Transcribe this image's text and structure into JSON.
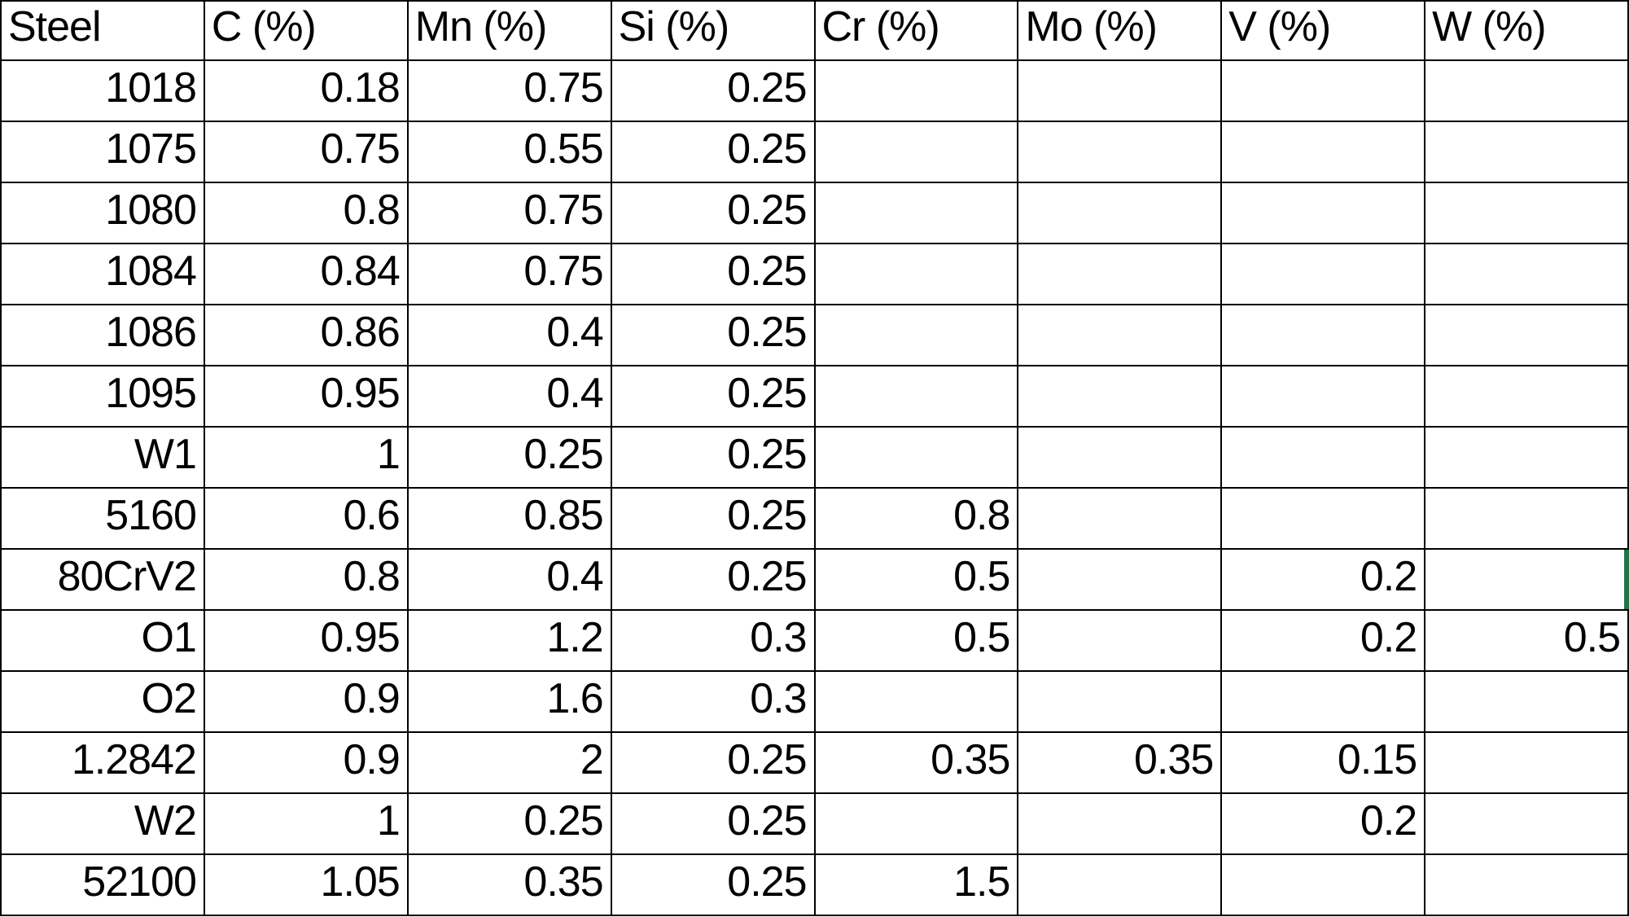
{
  "table": {
    "columns": [
      "Steel",
      "C (%)",
      "Mn (%)",
      "Si (%)",
      "Cr (%)",
      "Mo (%)",
      "V (%)",
      "W (%)"
    ],
    "rows": [
      {
        "cells": [
          "1018",
          "0.18",
          "0.75",
          "0.25",
          "",
          "",
          "",
          ""
        ]
      },
      {
        "cells": [
          "1075",
          "0.75",
          "0.55",
          "0.25",
          "",
          "",
          "",
          ""
        ]
      },
      {
        "cells": [
          "1080",
          "0.8",
          "0.75",
          "0.25",
          "",
          "",
          "",
          ""
        ]
      },
      {
        "cells": [
          "1084",
          "0.84",
          "0.75",
          "0.25",
          "",
          "",
          "",
          ""
        ]
      },
      {
        "cells": [
          "1086",
          "0.86",
          "0.4",
          "0.25",
          "",
          "",
          "",
          ""
        ]
      },
      {
        "cells": [
          "1095",
          "0.95",
          "0.4",
          "0.25",
          "",
          "",
          "",
          ""
        ]
      },
      {
        "cells": [
          "W1",
          "1",
          "0.25",
          "0.25",
          "",
          "",
          "",
          ""
        ]
      },
      {
        "cells": [
          "5160",
          "0.6",
          "0.85",
          "0.25",
          "0.8",
          "",
          "",
          ""
        ]
      },
      {
        "cells": [
          "80CrV2",
          "0.8",
          "0.4",
          "0.25",
          "0.5",
          "",
          "0.2",
          ""
        ]
      },
      {
        "cells": [
          "O1",
          "0.95",
          "1.2",
          "0.3",
          "0.5",
          "",
          "0.2",
          "0.5"
        ]
      },
      {
        "cells": [
          "O2",
          "0.9",
          "1.6",
          "0.3",
          "",
          "",
          "",
          ""
        ]
      },
      {
        "cells": [
          "1.2842",
          "0.9",
          "2",
          "0.25",
          "0.35",
          "0.35",
          "0.15",
          ""
        ]
      },
      {
        "cells": [
          "W2",
          "1",
          "0.25",
          "0.25",
          "",
          "",
          "0.2",
          ""
        ]
      },
      {
        "cells": [
          "52100",
          "1.05",
          "0.35",
          "0.25",
          "1.5",
          "",
          "",
          ""
        ]
      }
    ]
  },
  "selection_indicator": {
    "row_label": "80CrV2",
    "color": "#217346"
  }
}
